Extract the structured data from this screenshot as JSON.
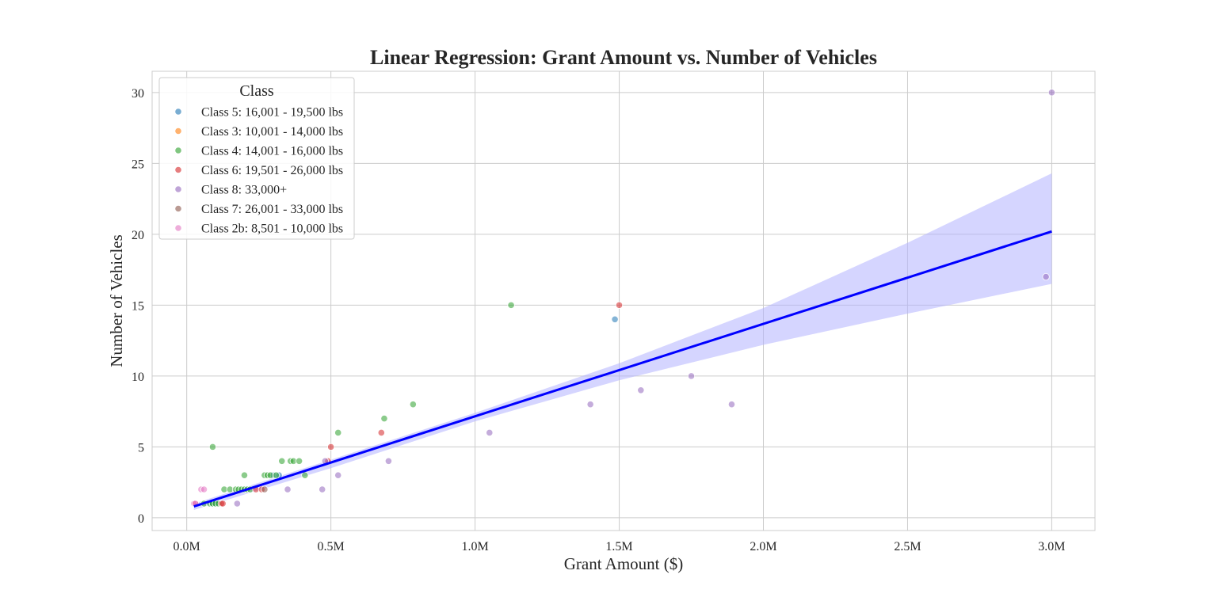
{
  "chart_data": {
    "type": "scatter",
    "title": "Linear Regression: Grant Amount vs. Number of Vehicles",
    "xlabel": "Grant Amount ($)",
    "ylabel": "Number of Vehicles",
    "xlim": [
      -120000,
      3150000
    ],
    "ylim": [
      -0.9,
      31.5
    ],
    "x_ticks": [
      0,
      500000,
      1000000,
      1500000,
      2000000,
      2500000,
      3000000
    ],
    "x_tick_labels": [
      "0.0M",
      "0.5M",
      "1.0M",
      "1.5M",
      "2.0M",
      "2.5M",
      "3.0M"
    ],
    "y_ticks": [
      0,
      5,
      10,
      15,
      20,
      25,
      30
    ],
    "y_tick_labels": [
      "0",
      "5",
      "10",
      "15",
      "20",
      "25",
      "30"
    ],
    "grid": true,
    "legend": {
      "title": "Class",
      "placement": "top-left"
    },
    "series": [
      {
        "name": "Class 5: 16,001 - 19,500 lbs",
        "color": "#1f77b4",
        "points": [
          [
            90000,
            1
          ],
          [
            100000,
            1
          ],
          [
            300000,
            3
          ],
          [
            320000,
            3
          ],
          [
            1485000,
            14
          ]
        ]
      },
      {
        "name": "Class 3: 10,001 - 14,000 lbs",
        "color": "#ff7f0e",
        "points": []
      },
      {
        "name": "Class 4: 14,001 - 16,000 lbs",
        "color": "#2ca02c",
        "points": [
          [
            60000,
            1
          ],
          [
            80000,
            1
          ],
          [
            90000,
            1
          ],
          [
            100000,
            1
          ],
          [
            110000,
            1
          ],
          [
            90000,
            5
          ],
          [
            130000,
            2
          ],
          [
            150000,
            2
          ],
          [
            170000,
            2
          ],
          [
            180000,
            2
          ],
          [
            190000,
            2
          ],
          [
            200000,
            2
          ],
          [
            210000,
            2
          ],
          [
            220000,
            2
          ],
          [
            200000,
            3
          ],
          [
            270000,
            3
          ],
          [
            280000,
            3
          ],
          [
            290000,
            3
          ],
          [
            310000,
            3
          ],
          [
            330000,
            4
          ],
          [
            360000,
            4
          ],
          [
            370000,
            4
          ],
          [
            390000,
            4
          ],
          [
            410000,
            3
          ],
          [
            525000,
            6
          ],
          [
            685000,
            7
          ],
          [
            785000,
            8
          ],
          [
            1125000,
            15
          ]
        ]
      },
      {
        "name": "Class 6: 19,501 - 26,000 lbs",
        "color": "#d62728",
        "points": [
          [
            30000,
            1
          ],
          [
            120000,
            1
          ],
          [
            125000,
            1
          ],
          [
            240000,
            2
          ],
          [
            260000,
            2
          ],
          [
            490000,
            4
          ],
          [
            500000,
            5
          ],
          [
            675000,
            6
          ],
          [
            1500000,
            15
          ]
        ]
      },
      {
        "name": "Class 8: 33,000+",
        "color": "#9467bd",
        "points": [
          [
            175000,
            1
          ],
          [
            350000,
            2
          ],
          [
            470000,
            2
          ],
          [
            480000,
            4
          ],
          [
            525000,
            3
          ],
          [
            700000,
            4
          ],
          [
            1050000,
            6
          ],
          [
            1400000,
            8
          ],
          [
            1575000,
            9
          ],
          [
            1750000,
            10
          ],
          [
            1890000,
            8
          ],
          [
            2980000,
            17
          ],
          [
            3000000,
            30
          ]
        ]
      },
      {
        "name": "Class 7: 26,001 - 33,000 lbs",
        "color": "#8c564b",
        "points": [
          [
            270000,
            2
          ]
        ]
      },
      {
        "name": "Class 2b: 8,501 - 10,000 lbs",
        "color": "#e377c2",
        "points": [
          [
            25000,
            1
          ],
          [
            30000,
            1
          ],
          [
            50000,
            2
          ],
          [
            60000,
            2
          ]
        ]
      }
    ],
    "regression": {
      "color": "#0000ff",
      "ci_color": "#b3b3ff",
      "line": [
        [
          25000,
          0.8
        ],
        [
          3000000,
          20.2
        ]
      ],
      "ci_upper": [
        [
          25000,
          1.0
        ],
        [
          500000,
          4.1
        ],
        [
          1000000,
          7.4
        ],
        [
          1500000,
          10.9
        ],
        [
          2000000,
          14.8
        ],
        [
          2500000,
          19.4
        ],
        [
          3000000,
          24.3
        ]
      ],
      "ci_lower": [
        [
          25000,
          0.55
        ],
        [
          500000,
          3.5
        ],
        [
          1000000,
          6.8
        ],
        [
          1500000,
          9.7
        ],
        [
          2000000,
          12.2
        ],
        [
          2500000,
          14.4
        ],
        [
          3000000,
          16.5
        ]
      ]
    }
  }
}
